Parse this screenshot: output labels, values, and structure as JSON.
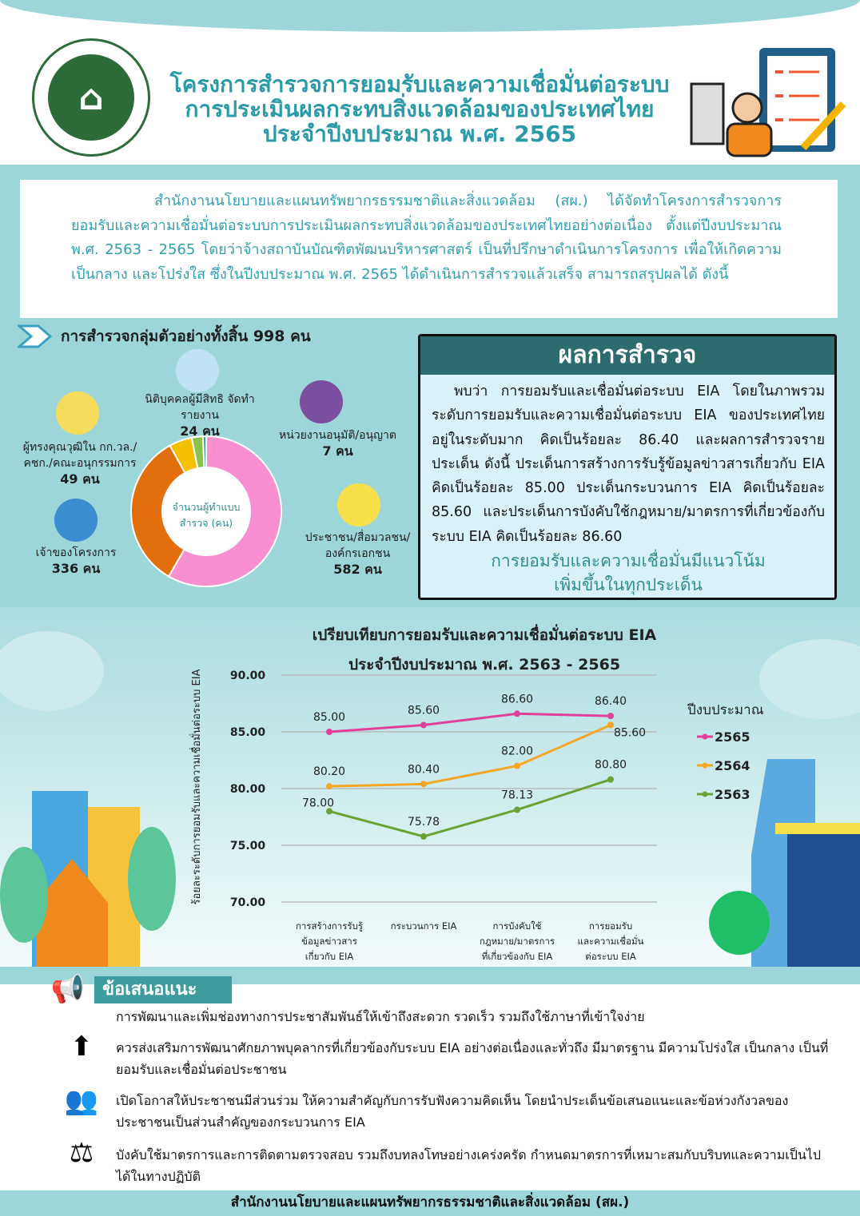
{
  "header": {
    "title_lines": [
      "โครงการสำรวจการยอมรับและความเชื่อมั่นต่อระบบ",
      "การประเมินผลกระทบสิ่งแวดล้อมของประเทศไทย",
      "ประจำปีงบประมาณ พ.ศ. 2565"
    ]
  },
  "intro": "สำนักงานนโยบายและแผนทรัพยากรธรรมชาติและสิ่งแวดล้อม (สผ.) ได้จัดทำโครงการสำรวจการยอมรับและความเชื่อมั่นต่อระบบการประเมินผลกระทบสิ่งแวดล้อมของประเทศไทยอย่างต่อเนื่อง ตั้งแต่ปีงบประมาณ พ.ศ. 2563 - 2565 โดยว่าจ้างสถาบันบัณฑิตพัฒนบริหารศาสตร์ เป็นที่ปรึกษาดำเนินการโครงการ เพื่อให้เกิดความเป็นกลาง และโปร่งใส ซึ่งในปีงบประมาณ พ.ศ. 2565 ได้ดำเนินการสำรวจแล้วเสร็จ สามารถสรุปผลได้ ดังนี้",
  "sample": {
    "heading": "การสำรวจกลุ่มตัวอย่างทั้งสิ้น 998 คน",
    "center_label": "จำนวนผู้ทำแบบสำรวจ (คน)",
    "groups": [
      {
        "name": "ประชาชน/สื่อมวลชน/ องค์กรเอกชน",
        "value": 582,
        "value_label": "582 คน",
        "color": "#f78fd0"
      },
      {
        "name": "เจ้าของโครงการ",
        "value": 336,
        "value_label": "336 คน",
        "color": "#e36e0c"
      },
      {
        "name": "ผู้ทรงคุณวุฒิใน กก.วล./ คชก./คณะอนุกรรมการ",
        "value": 49,
        "value_label": "49 คน",
        "color": "#f5c000"
      },
      {
        "name": "นิติบุคคลผู้มีสิทธิ จัดทำรายงาน",
        "value": 24,
        "value_label": "24 คน",
        "color": "#8bc34a"
      },
      {
        "name": "หน่วยงานอนุมัติ/อนุญาต",
        "value": 7,
        "value_label": "7 คน",
        "color": "#3aa0a5"
      }
    ]
  },
  "results": {
    "title": "ผลการสำรวจ",
    "body": "พบว่า การยอมรับและเชื่อมั่นต่อระบบ EIA โดยในภาพรวมระดับการยอมรับและความเชื่อมั่นต่อระบบ EIA ของประเทศไทยอยู่ในระดับมาก คิดเป็นร้อยละ 86.40 และผลการสำรวจรายประเด็น ดังนี้ ประเด็นการสร้างการรับรู้ข้อมูลข่าวสารเกี่ยวกับ EIA คิดเป็นร้อยละ 85.00 ประเด็นกระบวนการ EIA คิดเป็นร้อยละ 85.60 และประเด็นการบังคับใช้กฎหมาย/มาตรการที่เกี่ยวข้องกับระบบ EIA คิดเป็นร้อยละ 86.60",
    "highlight_lines": [
      "การยอมรับและความเชื่อมั่นมีแนวโน้ม",
      "เพิ่มขึ้นในทุกประเด็น"
    ]
  },
  "chart_data": {
    "type": "line",
    "title": [
      "เปรียบเทียบการยอมรับและความเชื่อมั่นต่อระบบ EIA",
      "ประจำปีงบประมาณ พ.ศ. 2563 - 2565"
    ],
    "ylabel": "ร้อยละระดับการยอมรับและความเชื่อมั่นต่อระบบ EIA",
    "ylim": [
      70,
      90
    ],
    "yticks": [
      "70.00",
      "75.00",
      "80.00",
      "85.00",
      "90.00"
    ],
    "grid": true,
    "legend_title": "ปีงบประมาณ",
    "legend_position": "right",
    "categories": [
      [
        "การสร้างการรับรู้",
        "ข้อมูลข่าวสาร",
        "เกี่ยวกับ EIA"
      ],
      [
        "กระบวนการ EIA"
      ],
      [
        "การบังคับใช้",
        "กฎหมาย/มาตรการ",
        "ที่เกี่ยวข้องกับ EIA"
      ],
      [
        "การยอมรับ",
        "และความเชื่อมั่น",
        "ต่อระบบ EIA"
      ]
    ],
    "series": [
      {
        "name": "2565",
        "color": "#e0409a",
        "values": [
          85.0,
          85.6,
          86.6,
          86.4
        ],
        "labels": [
          "85.00",
          "85.60",
          "86.60",
          "86.40"
        ]
      },
      {
        "name": "2564",
        "color": "#f5a623",
        "values": [
          80.2,
          80.4,
          82.0,
          85.6
        ],
        "labels": [
          "80.20",
          "80.40",
          "82.00",
          "85.60"
        ]
      },
      {
        "name": "2563",
        "color": "#6aa236",
        "values": [
          78.0,
          75.78,
          78.13,
          80.8
        ],
        "labels": [
          "78.00",
          "75.78",
          "78.13",
          "80.80"
        ]
      }
    ]
  },
  "recommendations": {
    "title": "ข้อเสนอแนะ",
    "items": [
      "การพัฒนาและเพิ่มช่องทางการประชาสัมพันธ์ให้เข้าถึงสะดวก รวดเร็ว รวมถึงใช้ภาษาที่เข้าใจง่าย",
      "ควรส่งเสริมการพัฒนาศักยภาพบุคลากรที่เกี่ยวข้องกับระบบ EIA อย่างต่อเนื่องและทั่วถึง มีมาตรฐาน มีความโปร่งใส เป็นกลาง เป็นที่ยอมรับและเชื่อมั่นต่อประชาชน",
      "เปิดโอกาสให้ประชาชนมีส่วนร่วม ให้ความสำคัญกับการรับฟังความคิดเห็น โดยนำประเด็นข้อเสนอแนะและข้อห่วงกังวลของประชาชนเป็นส่วนสำคัญของกระบวนการ EIA",
      "บังคับใช้มาตรการและการติดตามตรวจสอบ รวมถึงบทลงโทษอย่างเคร่งครัด กำหนดมาตรการที่เหมาะสมกับบริบทและความเป็นไปได้ในทางปฏิบัติ"
    ]
  },
  "footer": "สำนักงานนโยบายและแผนทรัพยากรธรรมชาติและสิ่งแวดล้อม (สผ.)"
}
